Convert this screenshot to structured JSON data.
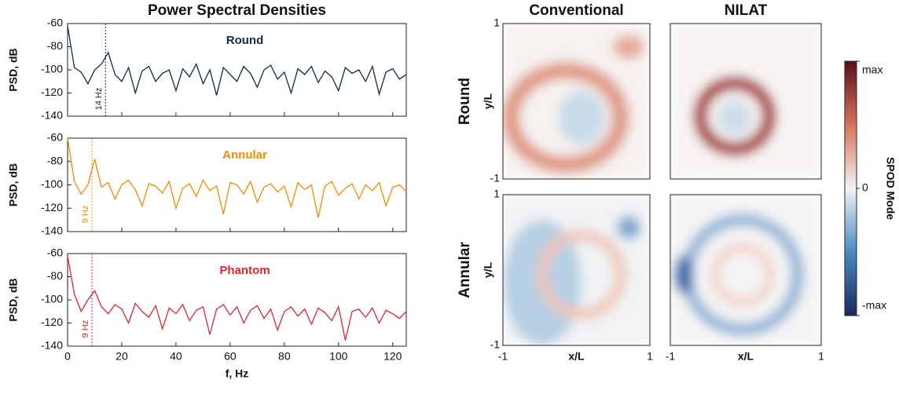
{
  "chart_data": [
    {
      "type": "line",
      "title": "Power Spectral Densities",
      "ylabel": "PSD, dB",
      "xlim": [
        0,
        125
      ],
      "ylim": [
        -140,
        -60
      ],
      "xticks": [
        0,
        20,
        40,
        60,
        80,
        100,
        120
      ],
      "yticks": [
        -140,
        -120,
        -100,
        -80,
        -60
      ],
      "tick_labels": false,
      "x": [
        0,
        2.5,
        5,
        7.5,
        10,
        12.5,
        15,
        17.5,
        20,
        22.5,
        25,
        27.5,
        30,
        32.5,
        35,
        37.5,
        40,
        42.5,
        45,
        47.5,
        50,
        52.5,
        55,
        57.5,
        60,
        62.5,
        65,
        67.5,
        70,
        72.5,
        75,
        77.5,
        80,
        82.5,
        85,
        87.5,
        90,
        92.5,
        95,
        97.5,
        100,
        102.5,
        105,
        107.5,
        110,
        112.5,
        115,
        117.5,
        120,
        122.5,
        125
      ],
      "series": [
        {
          "name": "Round",
          "color": "#0d2a45",
          "values": [
            -62,
            -98,
            -102,
            -112,
            -100,
            -95,
            -85,
            -104,
            -110,
            -98,
            -120,
            -101,
            -97,
            -110,
            -103,
            -100,
            -118,
            -99,
            -106,
            -95,
            -112,
            -100,
            -122,
            -98,
            -104,
            -110,
            -97,
            -103,
            -115,
            -100,
            -96,
            -108,
            -102,
            -120,
            -99,
            -104,
            -97,
            -111,
            -101,
            -106,
            -118,
            -98,
            -103,
            -100,
            -110,
            -97,
            -121,
            -102,
            -99,
            -108,
            -104
          ]
        }
      ],
      "annotation": {
        "x": 14,
        "label": "14 Hz"
      }
    },
    {
      "type": "line",
      "ylabel": "PSD, dB",
      "xlim": [
        0,
        125
      ],
      "ylim": [
        -140,
        -60
      ],
      "xticks": [
        0,
        20,
        40,
        60,
        80,
        100,
        120
      ],
      "yticks": [
        -140,
        -120,
        -100,
        -80,
        -60
      ],
      "tick_labels": false,
      "x": [
        0,
        2.5,
        5,
        7.5,
        10,
        12.5,
        15,
        17.5,
        20,
        22.5,
        25,
        27.5,
        30,
        32.5,
        35,
        37.5,
        40,
        42.5,
        45,
        47.5,
        50,
        52.5,
        55,
        57.5,
        60,
        62.5,
        65,
        67.5,
        70,
        72.5,
        75,
        77.5,
        80,
        82.5,
        85,
        87.5,
        90,
        92.5,
        95,
        97.5,
        100,
        102.5,
        105,
        107.5,
        110,
        112.5,
        115,
        117.5,
        120,
        122.5,
        125
      ],
      "series": [
        {
          "name": "Annular",
          "color": "#f08c00",
          "values": [
            -60,
            -97,
            -108,
            -100,
            -78,
            -102,
            -98,
            -112,
            -100,
            -96,
            -104,
            -118,
            -99,
            -101,
            -107,
            -97,
            -120,
            -103,
            -99,
            -110,
            -96,
            -105,
            -101,
            -125,
            -98,
            -100,
            -108,
            -97,
            -115,
            -102,
            -99,
            -106,
            -101,
            -119,
            -98,
            -104,
            -100,
            -128,
            -101,
            -97,
            -109,
            -103,
            -99,
            -112,
            -100,
            -105,
            -98,
            -118,
            -102,
            -100,
            -106
          ]
        }
      ],
      "annotation": {
        "x": 9,
        "label": "9 Hz"
      }
    },
    {
      "type": "line",
      "ylabel": "PSD, dB",
      "xlabel": "f, Hz",
      "xlim": [
        0,
        125
      ],
      "ylim": [
        -140,
        -60
      ],
      "xticks": [
        0,
        20,
        40,
        60,
        80,
        100,
        120
      ],
      "yticks": [
        -140,
        -120,
        -100,
        -80,
        -60
      ],
      "tick_labels": true,
      "x": [
        0,
        2.5,
        5,
        7.5,
        10,
        12.5,
        15,
        17.5,
        20,
        22.5,
        25,
        27.5,
        30,
        32.5,
        35,
        37.5,
        40,
        42.5,
        45,
        47.5,
        50,
        52.5,
        55,
        57.5,
        60,
        62.5,
        65,
        67.5,
        70,
        72.5,
        75,
        77.5,
        80,
        82.5,
        85,
        87.5,
        90,
        92.5,
        95,
        97.5,
        100,
        102.5,
        105,
        107.5,
        110,
        112.5,
        115,
        117.5,
        120,
        122.5,
        125
      ],
      "series": [
        {
          "name": "Phantom",
          "color": "#d9272e",
          "values": [
            -62,
            -95,
            -110,
            -100,
            -92,
            -106,
            -112,
            -104,
            -108,
            -120,
            -103,
            -110,
            -115,
            -105,
            -125,
            -107,
            -112,
            -104,
            -118,
            -109,
            -106,
            -130,
            -108,
            -104,
            -113,
            -106,
            -120,
            -109,
            -105,
            -116,
            -108,
            -126,
            -110,
            -106,
            -114,
            -108,
            -121,
            -107,
            -111,
            -118,
            -106,
            -135,
            -110,
            -108,
            -115,
            -107,
            -120,
            -109,
            -112,
            -116,
            -110
          ]
        }
      ],
      "annotation": {
        "x": 9,
        "label": "9 Hz"
      }
    },
    {
      "type": "heatmap",
      "columns": [
        "Conventional",
        "NILAT"
      ],
      "rows": [
        "Round",
        "Annular"
      ],
      "xlabel": "x/L",
      "ylabel": "y/L",
      "xlim": [
        -1,
        1
      ],
      "ylim": [
        -1,
        1
      ],
      "xticks": [
        -1,
        1
      ],
      "yticks": [
        -1,
        1
      ],
      "colorbar": {
        "label": "SPOD Mode",
        "lim": [
          -1,
          1
        ],
        "ticks": [
          {
            "value": -1,
            "label": "-max"
          },
          0,
          {
            "value": 1,
            "label": "max"
          }
        ]
      }
    }
  ]
}
